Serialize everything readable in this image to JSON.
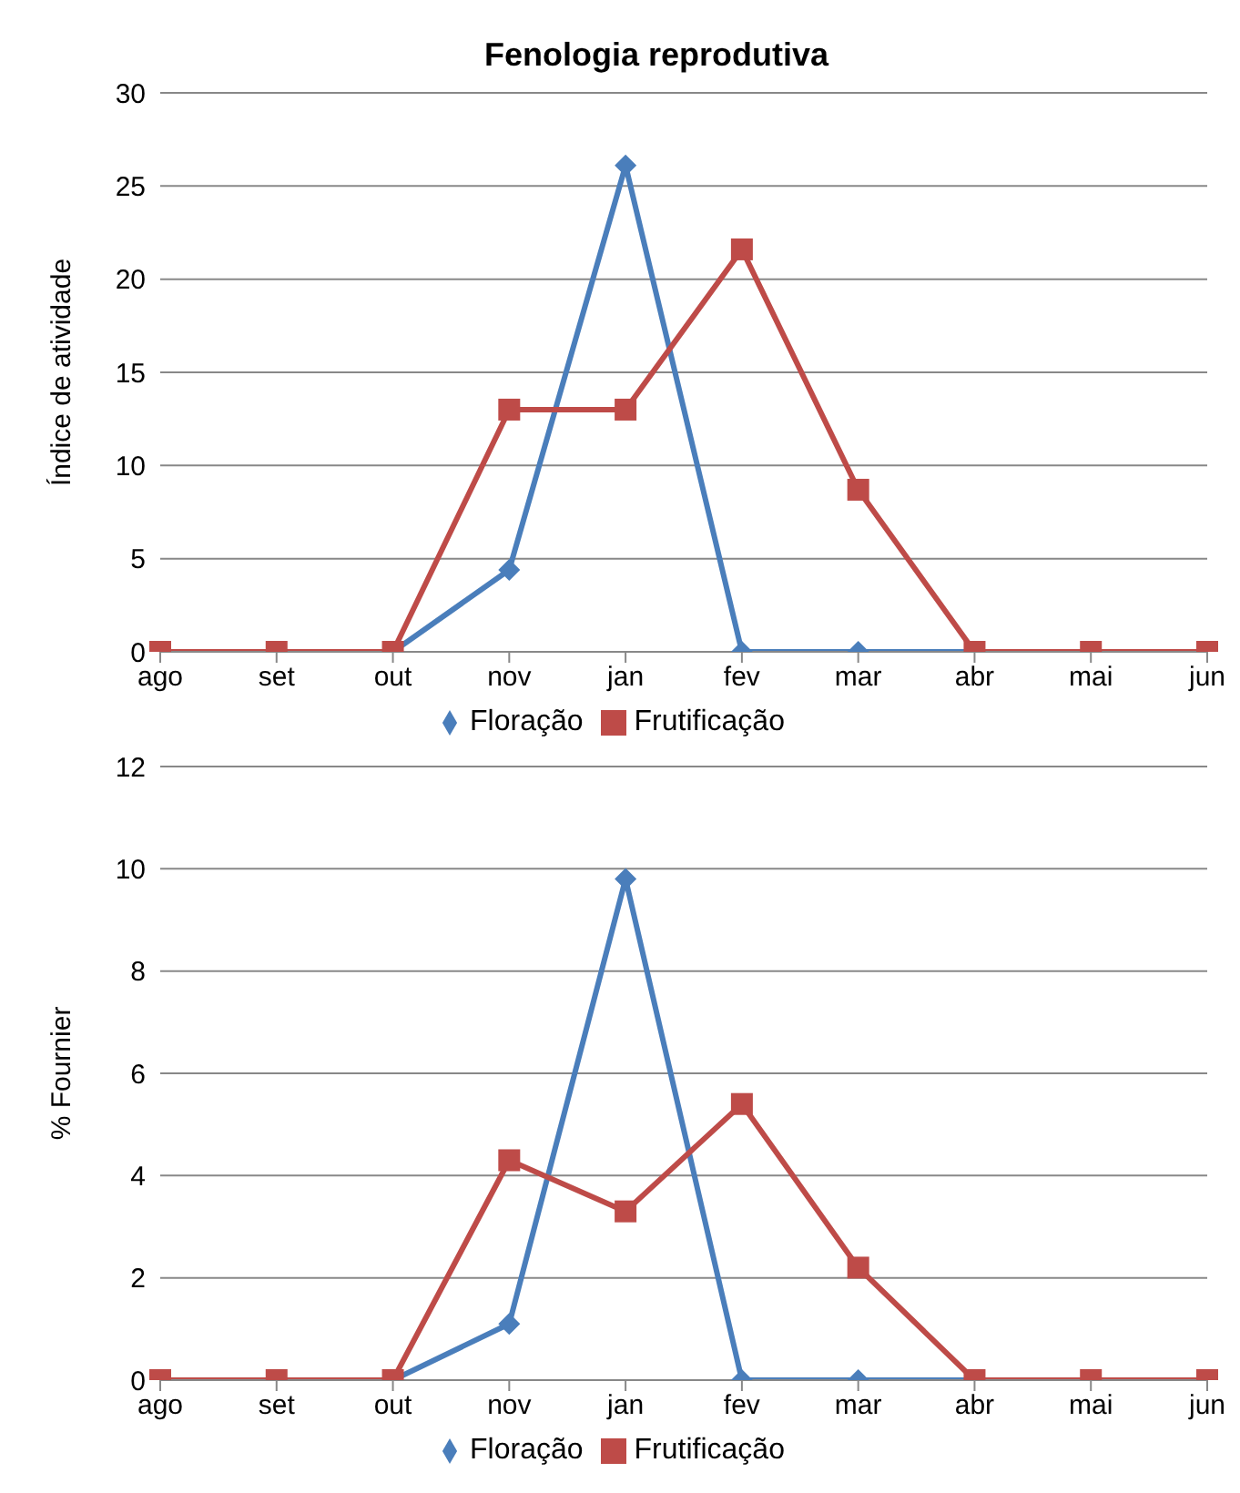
{
  "chart_data": [
    {
      "type": "line",
      "title": "Fenologia reprodutiva",
      "ylabel": "Índice de atividade",
      "categories": [
        "ago",
        "set",
        "out",
        "nov",
        "jan",
        "fev",
        "mar",
        "abr",
        "mai",
        "jun"
      ],
      "series": [
        {
          "name": "Floração",
          "color": "#4a7ebb",
          "marker": "diamond",
          "values": [
            0,
            0,
            0,
            4.4,
            26.1,
            0,
            0,
            0,
            0,
            0
          ]
        },
        {
          "name": "Frutificação",
          "color": "#be4b48",
          "marker": "square",
          "values": [
            0,
            0,
            0,
            13,
            13,
            21.6,
            8.7,
            0,
            0,
            0
          ]
        }
      ],
      "ylim": [
        0,
        30
      ],
      "yticks": [
        0,
        5,
        10,
        15,
        20,
        25,
        30
      ],
      "grid": "y",
      "legend": "bottom"
    },
    {
      "type": "line",
      "ylabel": "% Fournier",
      "categories": [
        "ago",
        "set",
        "out",
        "nov",
        "jan",
        "fev",
        "mar",
        "abr",
        "mai",
        "jun"
      ],
      "series": [
        {
          "name": "Floração",
          "color": "#4a7ebb",
          "marker": "diamond",
          "values": [
            0,
            0,
            0,
            1.1,
            9.8,
            0,
            0,
            0,
            0,
            0
          ]
        },
        {
          "name": "Frutificação",
          "color": "#be4b48",
          "marker": "square",
          "values": [
            0,
            0,
            0,
            4.3,
            3.3,
            5.4,
            2.2,
            0,
            0,
            0
          ]
        }
      ],
      "ylim": [
        0,
        12
      ],
      "yticks": [
        0,
        2,
        4,
        6,
        8,
        10,
        12
      ],
      "grid": "y",
      "legend": "bottom"
    }
  ]
}
